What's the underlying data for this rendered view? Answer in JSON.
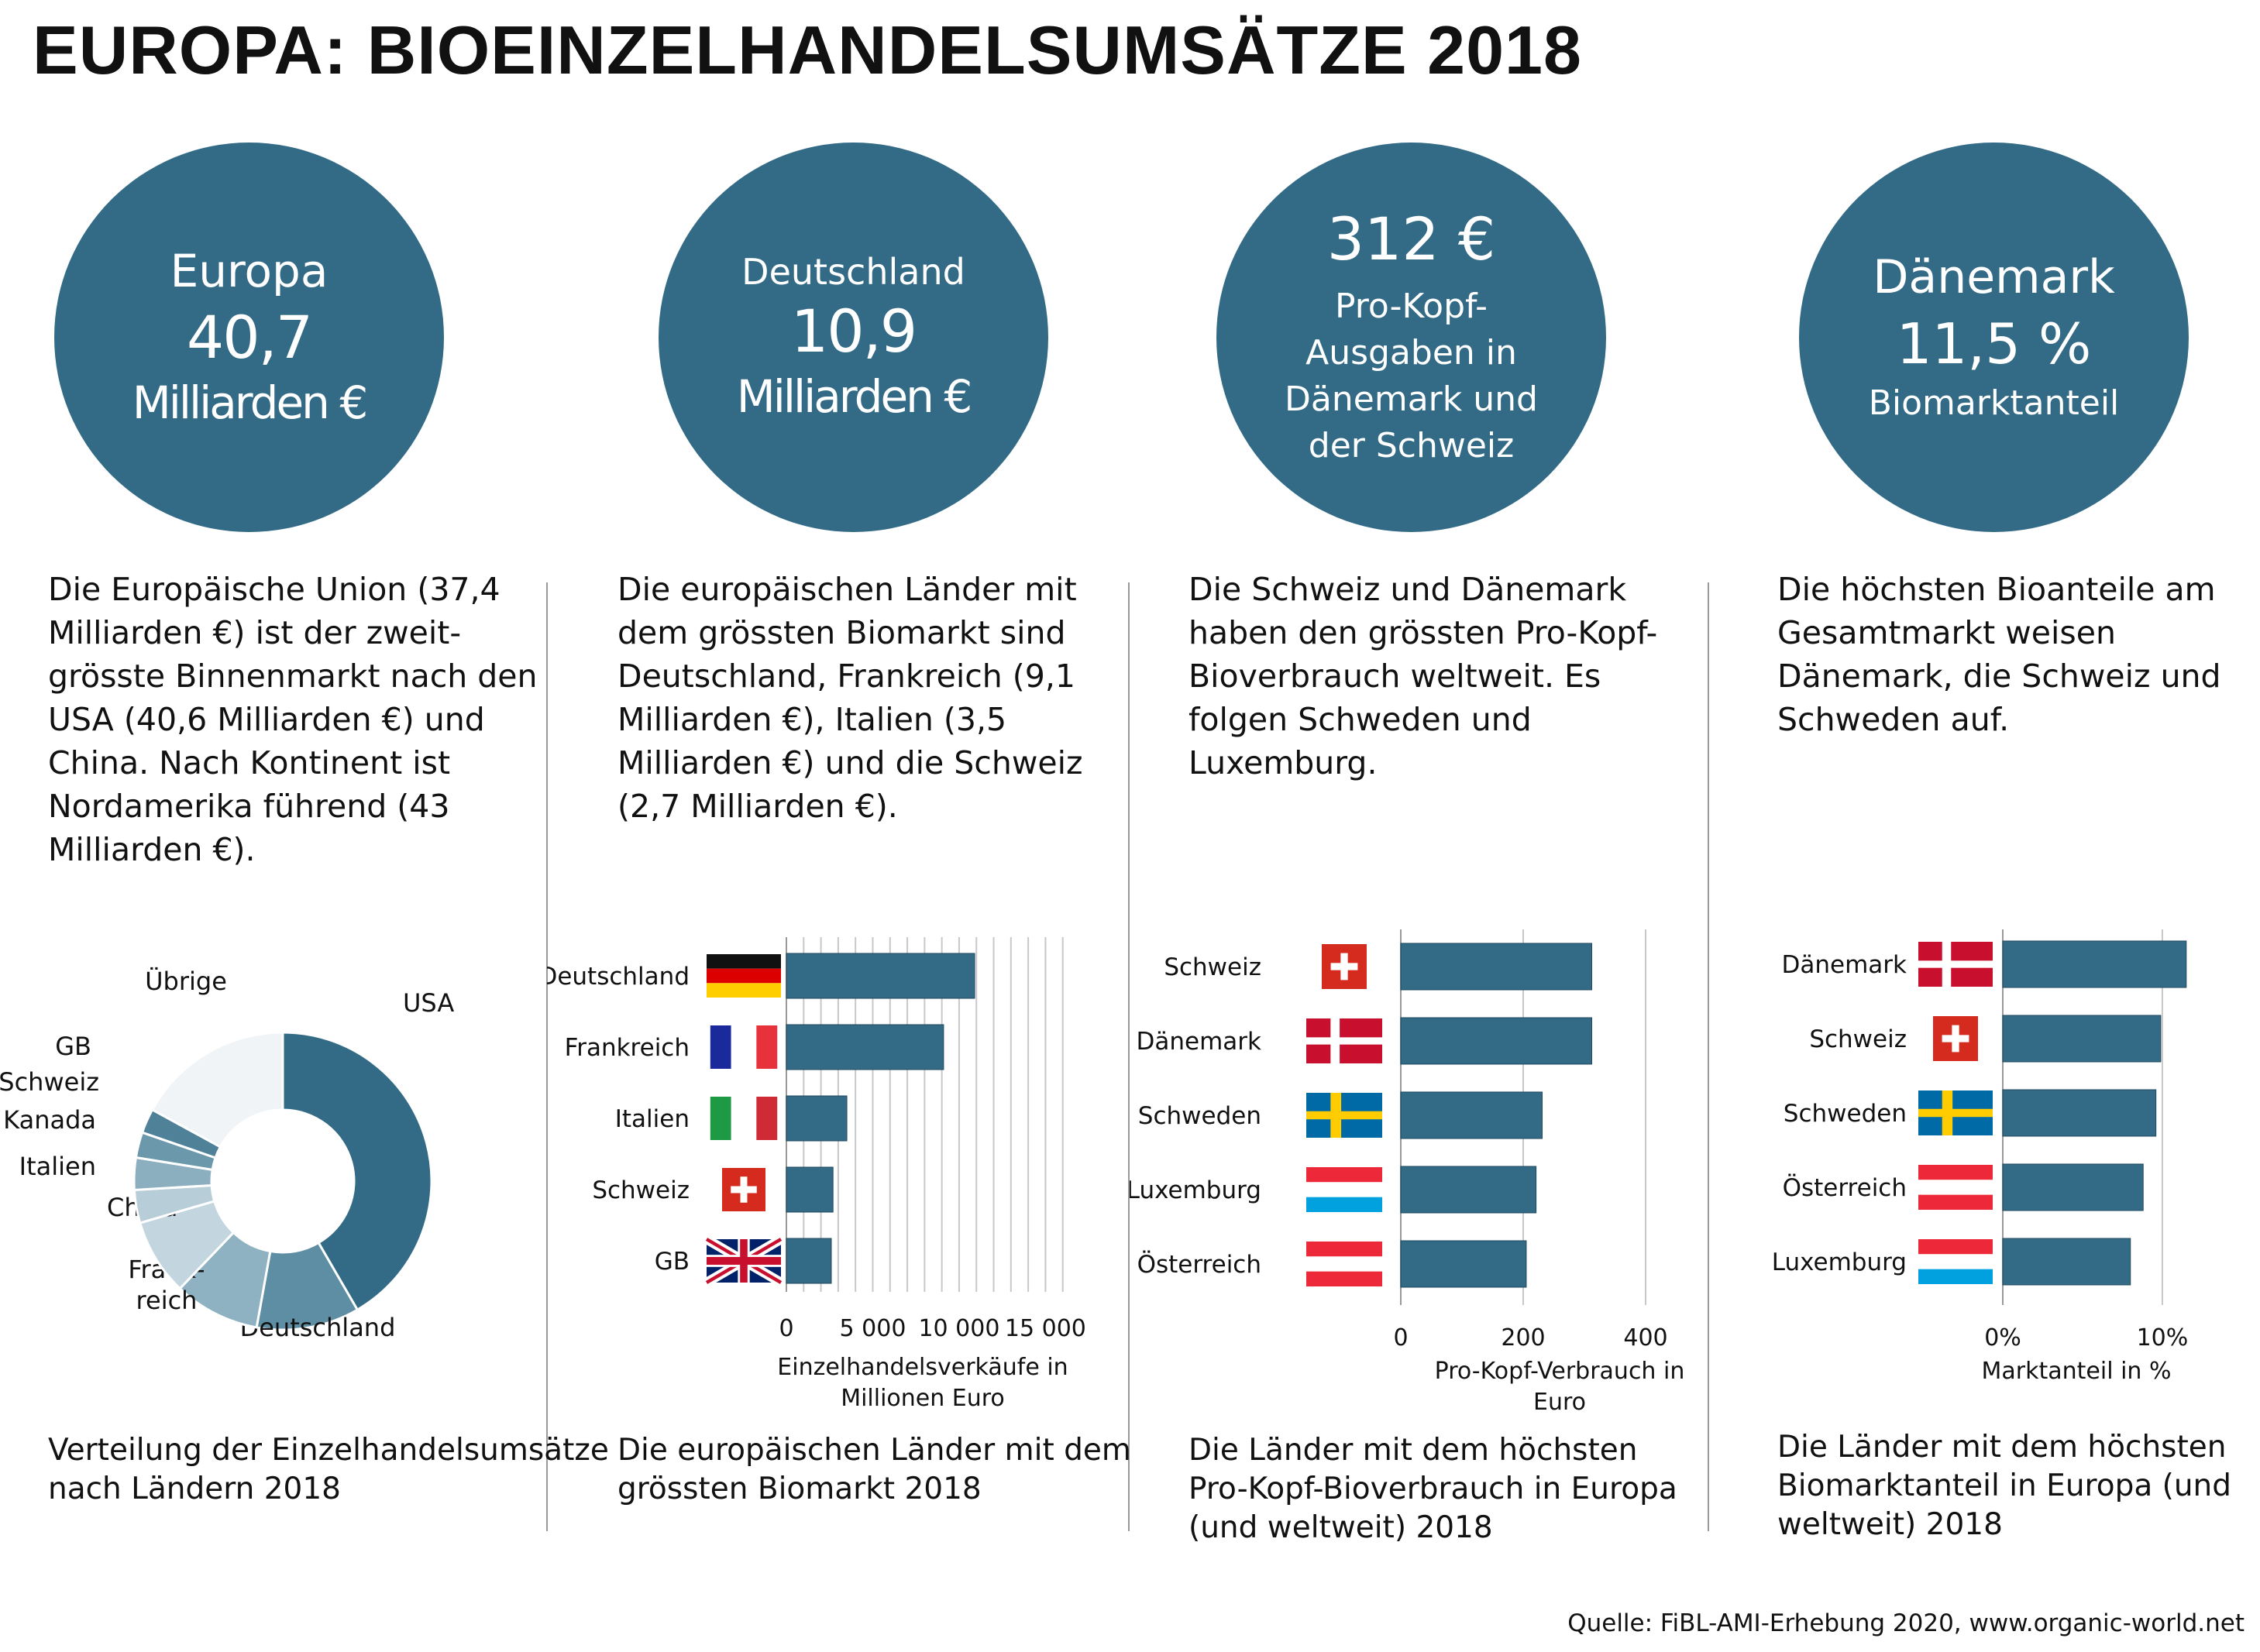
{
  "title": "EUROPA: BIOEINZELHANDELSUMSÄTZE 2018",
  "source": "Quelle: FiBL-AMI-Erhebung 2020,  www.organic-world.net",
  "colors": {
    "teal": "#336b86",
    "text": "#111111",
    "grid": "#c8c8c8",
    "divider": "#9a9a9a"
  },
  "circles": [
    {
      "line1": "Europa",
      "line2": "40,7",
      "line3": "Milliarden €"
    },
    {
      "line1": "Deutschland",
      "line2": "10,9",
      "line3": "Milliarden €"
    },
    {
      "line1": "312 €",
      "line2": "Pro-Kopf-",
      "line3": "Ausgaben in",
      "line4": "Dänemark und",
      "line5": "der Schweiz"
    },
    {
      "line1": "Dänemark",
      "line2": "11,5 %",
      "line3": "Biomarktanteil"
    }
  ],
  "texts": [
    [
      "Die Europäische Union (37,4",
      "Milliarden €) ist der zweit-",
      "grösste Binnenmarkt nach den",
      "USA (40,6 Milliarden €) und",
      "China. Nach Kontinent ist",
      "Nordamerika führend  (43",
      "Milliarden €)."
    ],
    [
      "Die europäischen Länder mit",
      "dem grössten Biomarkt sind",
      "Deutschland, Frankreich (9,1",
      "Milliarden €), Italien (3,5",
      "Milliarden €) und die Schweiz",
      "(2,7 Milliarden €)."
    ],
    [
      "Die Schweiz und Dänemark",
      "haben den grössten Pro-Kopf-",
      "Bioverbrauch weltweit. Es",
      "folgen Schweden und",
      "Luxemburg."
    ],
    [
      "Die höchsten Bioanteile am",
      "Gesamtmarkt weisen",
      "Dänemark, die Schweiz und",
      "Schweden auf."
    ]
  ],
  "captions": [
    [
      "Verteilung der Einzelhandelsumsätze",
      "nach Ländern 2018"
    ],
    [
      "Die europäischen  Länder mit dem",
      "grössten Biomarkt 2018"
    ],
    [
      "Die Länder mit dem höchsten",
      "Pro-Kopf-Bioverbrauch in Europa",
      "(und weltweit) 2018"
    ],
    [
      "Die Länder mit dem höchsten",
      "Biomarktanteil in Europa  (und",
      "weltweit) 2018"
    ]
  ],
  "chart_data": [
    {
      "type": "pie",
      "donut": true,
      "categories": [
        "USA",
        "Deutschland",
        "Frank-reich",
        "China",
        "Italien",
        "Kanada",
        "Schweiz",
        "GB",
        "Übrige"
      ],
      "label_lines": [
        [
          "USA"
        ],
        [
          "Deutschland"
        ],
        [
          "Frank-",
          "reich"
        ],
        [
          "China"
        ],
        [
          "Italien"
        ],
        [
          "Kanada"
        ],
        [
          "Schweiz"
        ],
        [
          "GB"
        ],
        [
          "Übrige"
        ]
      ],
      "values": [
        40.6,
        10.9,
        9.1,
        8.1,
        3.5,
        3.4,
        2.7,
        2.6,
        16.6
      ],
      "colors": [
        "#336b86",
        "#5e8ea4",
        "#8eb2c2",
        "#c3d6df",
        "#b7ced9",
        "#8cafbf",
        "#6c98ac",
        "#4f8199",
        "#f0f4f6"
      ]
    },
    {
      "type": "bar",
      "orientation": "horizontal",
      "categories": [
        "Deutschland",
        "Frankreich",
        "Italien",
        "Schweiz",
        "GB"
      ],
      "flags": [
        "germany",
        "france",
        "italy",
        "switzerland",
        "uk"
      ],
      "values": [
        10900,
        9100,
        3500,
        2700,
        2600
      ],
      "xlim": [
        0,
        17000
      ],
      "xticks": [
        "0",
        "5 000",
        "10 000",
        "15 000"
      ],
      "xtick_values": [
        0,
        5000,
        10000,
        15000
      ],
      "xlabel": [
        "Einzelhandelsverkäufe in",
        "Millionen Euro"
      ],
      "grid": true
    },
    {
      "type": "bar",
      "orientation": "horizontal",
      "categories": [
        "Schweiz",
        "Dänemark",
        "Schweden",
        "Luxemburg",
        "Österreich"
      ],
      "flags": [
        "switzerland",
        "denmark",
        "sweden",
        "luxembourg",
        "austria"
      ],
      "values": [
        312,
        312,
        231,
        221,
        205
      ],
      "xlim": [
        0,
        400
      ],
      "xticks": [
        "0",
        "200",
        "400"
      ],
      "xtick_values": [
        0,
        200,
        400
      ],
      "xlabel": [
        "Pro-Kopf-Verbrauch in",
        "Euro"
      ],
      "grid": true
    },
    {
      "type": "bar",
      "orientation": "horizontal",
      "categories": [
        "Dänemark",
        "Schweiz",
        "Schweden",
        "Österreich",
        "Luxemburg"
      ],
      "flags": [
        "denmark",
        "switzerland",
        "sweden",
        "austria",
        "luxembourg"
      ],
      "values": [
        11.5,
        9.9,
        9.6,
        8.8,
        8.0
      ],
      "xlim": [
        0,
        13.5
      ],
      "xticks": [
        "0%",
        "10%"
      ],
      "xtick_values": [
        0,
        10
      ],
      "xlabel": [
        "Marktanteil in %"
      ],
      "grid": true
    }
  ]
}
